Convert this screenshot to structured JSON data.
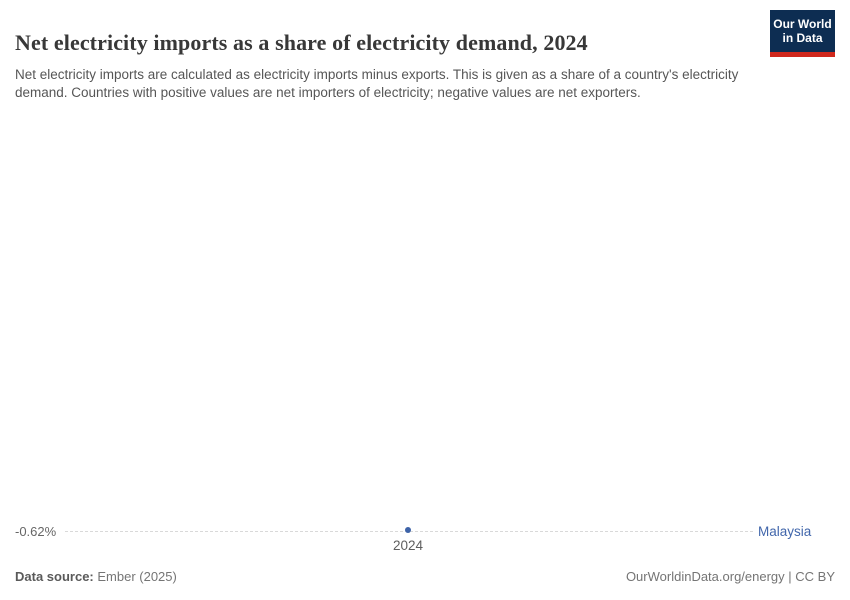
{
  "header": {
    "title": "Net electricity imports as a share of electricity demand, 2024",
    "subtitle": "Net electricity imports are calculated as electricity imports minus exports. This is given as a share of a country's electricity demand. Countries with positive values are net importers of electricity; negative values are net exporters.",
    "logo": {
      "line1": "Our World",
      "line2": "in Data",
      "bg_color": "#0d2d52",
      "bar_color": "#d0281c"
    }
  },
  "chart_data": {
    "type": "line",
    "title": "Net electricity imports as a share of electricity demand, 2024",
    "x": [
      2024
    ],
    "series": [
      {
        "name": "Malaysia",
        "values": [
          -0.62
        ],
        "color": "#3d63a8"
      }
    ],
    "x_tick_labels": [
      "2024"
    ],
    "y_tick_labels": [
      "-0.62%"
    ],
    "unit": "%",
    "grid": "single dashed horizontal gridline at data value",
    "legend_position": "entity label at right end of line"
  },
  "chart": {
    "y_tick_label": "-0.62%",
    "x_tick_label": "2024",
    "entity_label": "Malaysia",
    "point_color": "#3d63a8",
    "entity_label_color": "#4166ab",
    "gridline_color": "#d9d9d9"
  },
  "footer": {
    "source_label": "Data source:",
    "source_value": " Ember (2025)",
    "rights": "OurWorldinData.org/energy | CC BY"
  }
}
